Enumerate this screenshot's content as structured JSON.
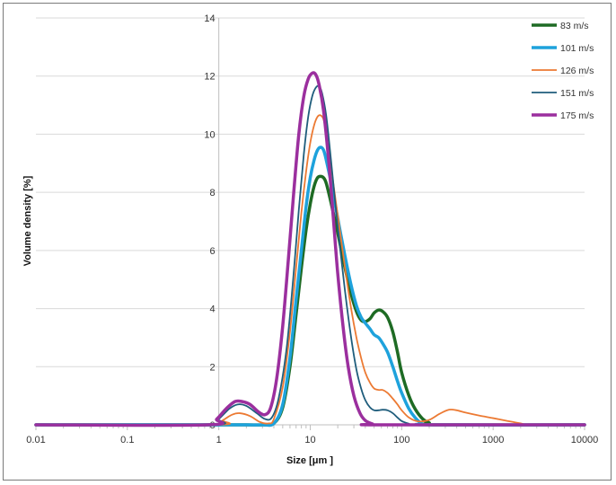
{
  "chart_data": {
    "type": "line",
    "xlabel": "Size [μm ]",
    "ylabel": "Volume density [%]",
    "xscale": "log",
    "xlim": [
      0.01,
      10000
    ],
    "ylim": [
      0,
      14
    ],
    "x_ticks": [
      "0.01",
      "0.1",
      "1",
      "10",
      "100",
      "1000",
      "10000"
    ],
    "y_ticks": [
      "0",
      "2",
      "4",
      "6",
      "8",
      "10",
      "12",
      "14"
    ],
    "grid": "horizontal major gridlines",
    "legend_position": "top-right",
    "series": [
      {
        "name": "83 m/s",
        "color": "#1e6b24",
        "width": 3.5,
        "points": [
          [
            0.01,
            0
          ],
          [
            1,
            0
          ],
          [
            2,
            0
          ],
          [
            3,
            0
          ],
          [
            4,
            0.05
          ],
          [
            5,
            0.6
          ],
          [
            6,
            2.0
          ],
          [
            7,
            3.8
          ],
          [
            8,
            5.4
          ],
          [
            9,
            6.7
          ],
          [
            10,
            7.6
          ],
          [
            11,
            8.2
          ],
          [
            12,
            8.5
          ],
          [
            13,
            8.55
          ],
          [
            14,
            8.5
          ],
          [
            15,
            8.3
          ],
          [
            17,
            7.6
          ],
          [
            20,
            6.6
          ],
          [
            24,
            5.4
          ],
          [
            28,
            4.5
          ],
          [
            32,
            3.9
          ],
          [
            36,
            3.6
          ],
          [
            40,
            3.55
          ],
          [
            45,
            3.65
          ],
          [
            50,
            3.85
          ],
          [
            56,
            3.95
          ],
          [
            62,
            3.9
          ],
          [
            70,
            3.7
          ],
          [
            80,
            3.2
          ],
          [
            90,
            2.5
          ],
          [
            100,
            1.8
          ],
          [
            120,
            1.0
          ],
          [
            140,
            0.55
          ],
          [
            170,
            0.2
          ],
          [
            200,
            0.07
          ],
          [
            240,
            0
          ],
          [
            10000,
            0
          ]
        ]
      },
      {
        "name": "101 m/s",
        "color": "#1ea2dc",
        "width": 3.5,
        "points": [
          [
            0.01,
            0
          ],
          [
            1,
            0
          ],
          [
            2,
            0
          ],
          [
            3,
            0
          ],
          [
            4,
            0.05
          ],
          [
            5,
            0.7
          ],
          [
            6,
            2.3
          ],
          [
            7,
            4.3
          ],
          [
            8,
            6.0
          ],
          [
            9,
            7.5
          ],
          [
            10,
            8.5
          ],
          [
            11,
            9.1
          ],
          [
            12,
            9.45
          ],
          [
            13,
            9.55
          ],
          [
            14,
            9.45
          ],
          [
            15,
            9.1
          ],
          [
            17,
            8.3
          ],
          [
            20,
            7.1
          ],
          [
            24,
            5.8
          ],
          [
            28,
            4.8
          ],
          [
            32,
            4.1
          ],
          [
            36,
            3.7
          ],
          [
            40,
            3.5
          ],
          [
            45,
            3.3
          ],
          [
            50,
            3.1
          ],
          [
            56,
            3.0
          ],
          [
            62,
            2.8
          ],
          [
            70,
            2.5
          ],
          [
            80,
            2.0
          ],
          [
            90,
            1.5
          ],
          [
            100,
            1.1
          ],
          [
            120,
            0.55
          ],
          [
            140,
            0.25
          ],
          [
            165,
            0.05
          ],
          [
            200,
            0
          ],
          [
            10000,
            0
          ]
        ]
      },
      {
        "name": "126 m/s",
        "color": "#ec7a33",
        "width": 1.8,
        "points": [
          [
            0.01,
            0
          ],
          [
            0.9,
            0
          ],
          [
            1.1,
            0.15
          ],
          [
            1.4,
            0.35
          ],
          [
            1.7,
            0.4
          ],
          [
            2.2,
            0.3
          ],
          [
            2.8,
            0.1
          ],
          [
            3.5,
            0.05
          ],
          [
            4,
            0.2
          ],
          [
            5,
            1.3
          ],
          [
            6,
            3.2
          ],
          [
            7,
            5.4
          ],
          [
            8,
            7.3
          ],
          [
            9,
            8.7
          ],
          [
            10,
            9.7
          ],
          [
            11,
            10.3
          ],
          [
            12,
            10.6
          ],
          [
            13,
            10.65
          ],
          [
            14,
            10.5
          ],
          [
            15,
            10.0
          ],
          [
            17,
            8.8
          ],
          [
            20,
            7.2
          ],
          [
            24,
            5.4
          ],
          [
            28,
            4.0
          ],
          [
            32,
            3.0
          ],
          [
            36,
            2.3
          ],
          [
            40,
            1.8
          ],
          [
            45,
            1.45
          ],
          [
            50,
            1.25
          ],
          [
            56,
            1.2
          ],
          [
            62,
            1.2
          ],
          [
            70,
            1.1
          ],
          [
            80,
            0.9
          ],
          [
            90,
            0.7
          ],
          [
            100,
            0.5
          ],
          [
            120,
            0.25
          ],
          [
            150,
            0.12
          ],
          [
            200,
            0.17
          ],
          [
            260,
            0.38
          ],
          [
            330,
            0.52
          ],
          [
            400,
            0.5
          ],
          [
            500,
            0.42
          ],
          [
            700,
            0.32
          ],
          [
            1000,
            0.23
          ],
          [
            1400,
            0.14
          ],
          [
            2000,
            0.05
          ],
          [
            2600,
            0
          ],
          [
            10000,
            0
          ]
        ]
      },
      {
        "name": "151 m/s",
        "color": "#1f5d7c",
        "width": 1.8,
        "points": [
          [
            0.01,
            0
          ],
          [
            0.8,
            0
          ],
          [
            1.0,
            0.2
          ],
          [
            1.3,
            0.55
          ],
          [
            1.6,
            0.7
          ],
          [
            2.0,
            0.65
          ],
          [
            2.6,
            0.4
          ],
          [
            3.2,
            0.2
          ],
          [
            3.8,
            0.25
          ],
          [
            4.5,
            0.9
          ],
          [
            5.5,
            2.6
          ],
          [
            6.5,
            5.0
          ],
          [
            7.5,
            7.4
          ],
          [
            8.5,
            9.3
          ],
          [
            9.5,
            10.6
          ],
          [
            10.5,
            11.3
          ],
          [
            11.5,
            11.6
          ],
          [
            12.5,
            11.65
          ],
          [
            13.5,
            11.4
          ],
          [
            15,
            10.6
          ],
          [
            17,
            9.0
          ],
          [
            20,
            6.8
          ],
          [
            24,
            4.6
          ],
          [
            28,
            3.0
          ],
          [
            32,
            1.9
          ],
          [
            36,
            1.25
          ],
          [
            40,
            0.85
          ],
          [
            45,
            0.6
          ],
          [
            50,
            0.5
          ],
          [
            56,
            0.5
          ],
          [
            62,
            0.52
          ],
          [
            70,
            0.5
          ],
          [
            80,
            0.4
          ],
          [
            90,
            0.25
          ],
          [
            100,
            0.13
          ],
          [
            120,
            0.04
          ],
          [
            140,
            0
          ],
          [
            10000,
            0
          ]
        ]
      },
      {
        "name": "175 m/s",
        "color": "#9b2f9e",
        "width": 3.5,
        "points": [
          [
            0.01,
            0
          ],
          [
            0.75,
            0
          ],
          [
            0.95,
            0.2
          ],
          [
            1.2,
            0.55
          ],
          [
            1.5,
            0.8
          ],
          [
            1.8,
            0.8
          ],
          [
            2.2,
            0.7
          ],
          [
            2.7,
            0.45
          ],
          [
            3.2,
            0.35
          ],
          [
            3.7,
            0.6
          ],
          [
            4.3,
            1.6
          ],
          [
            5.0,
            3.4
          ],
          [
            5.8,
            5.8
          ],
          [
            6.6,
            8.0
          ],
          [
            7.5,
            10.0
          ],
          [
            8.5,
            11.3
          ],
          [
            9.5,
            11.9
          ],
          [
            10.5,
            12.1
          ],
          [
            11.5,
            12.05
          ],
          [
            12.5,
            11.7
          ],
          [
            14,
            10.8
          ],
          [
            16,
            9.0
          ],
          [
            18,
            7.0
          ],
          [
            20,
            5.2
          ],
          [
            23,
            3.3
          ],
          [
            26,
            2.0
          ],
          [
            30,
            1.0
          ],
          [
            35,
            0.4
          ],
          [
            40,
            0.15
          ],
          [
            48,
            0.03
          ],
          [
            55,
            0
          ],
          [
            10000,
            0
          ]
        ]
      }
    ]
  }
}
